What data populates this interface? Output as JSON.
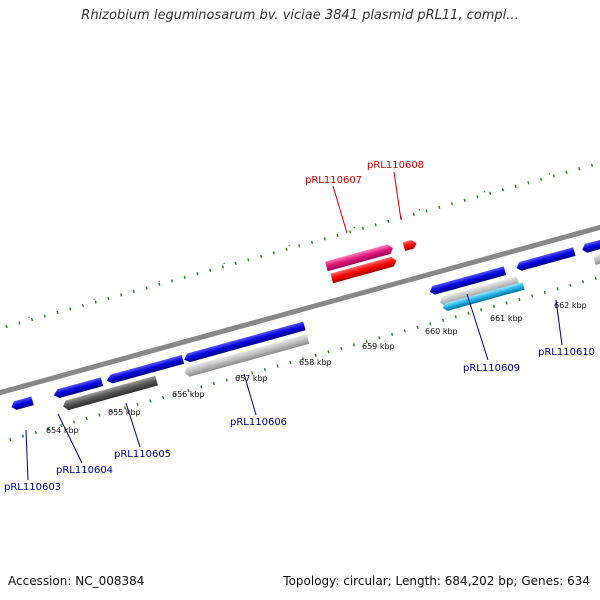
{
  "title": "Rhizobium leguminosarum bv. viciae 3841 plasmid pRL11, compl...",
  "colors": {
    "forward_gene": "#e0137a",
    "forward_gene_alt": "#ff0000",
    "reverse_gene": "#0000dd",
    "reverse_gene_cyan": "#1fb6e8",
    "backbone": "#888888",
    "tick": "#2a8a2a",
    "label_blue": "#00008b",
    "label_red": "#cc0000",
    "pseudo_dark": "#555555",
    "pseudo_light": "#bdbdbd"
  },
  "kbp_ticks": [
    "654 kbp",
    "655 kbp",
    "656 kbp",
    "657 kbp",
    "658 kbp",
    "659 kbp",
    "660 kbp",
    "661 kbp",
    "662 kbp"
  ],
  "gene_labels": {
    "top": [
      "pRL110607",
      "pRL110608"
    ],
    "bottom": [
      "pRL110603",
      "pRL110604",
      "pRL110605",
      "pRL110606",
      "pRL110609",
      "pRL110610"
    ]
  },
  "footer": {
    "accession": "Accession: NC_008384",
    "summary": "Topology: circular; Length: 684,202 bp; Genes: 634"
  }
}
